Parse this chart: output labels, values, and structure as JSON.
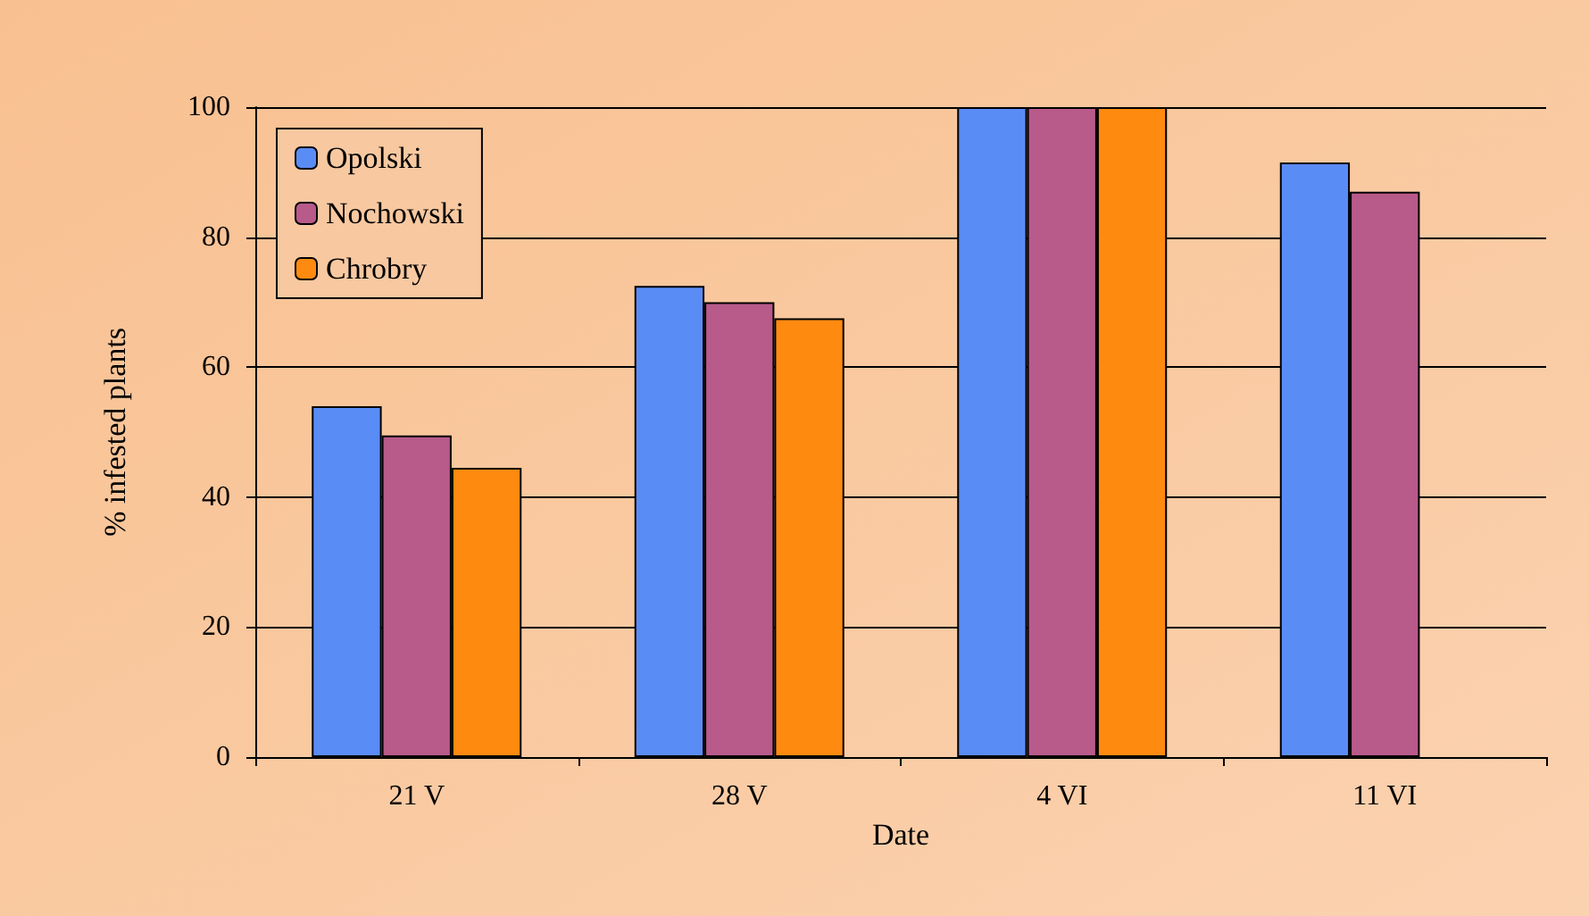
{
  "chart_data": {
    "type": "bar",
    "xlabel": "Date",
    "ylabel": "% infested plants",
    "categories": [
      "21 V",
      "28 V",
      "4 VI",
      "11 VI"
    ],
    "series": [
      {
        "name": "Opolski",
        "color": "#5a8cf5",
        "values": [
          54,
          72.5,
          100,
          91.5
        ]
      },
      {
        "name": "Nochowski",
        "color": "#b85a8a",
        "values": [
          49.5,
          70,
          100,
          87
        ]
      },
      {
        "name": "Chrobry",
        "color": "#ff8a10",
        "values": [
          44.5,
          67.5,
          100,
          null
        ]
      }
    ],
    "ylim": [
      0,
      100
    ],
    "yticks": [
      0,
      20,
      40,
      60,
      80,
      100
    ],
    "grid": "y",
    "legend": "top left"
  }
}
